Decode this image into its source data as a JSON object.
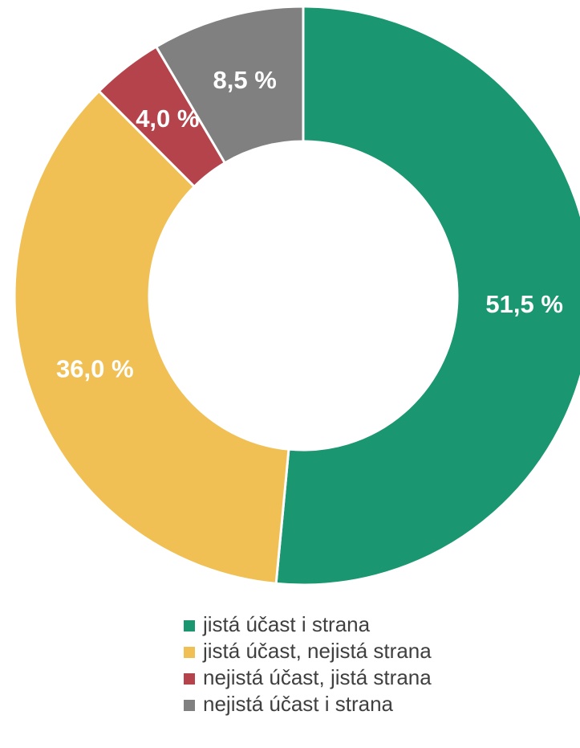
{
  "chart_data": {
    "type": "pie",
    "categories": [
      "jistá účast i strana",
      "jistá účast, nejistá strana",
      "nejistá účast, jistá strana",
      "nejistá účast i strana"
    ],
    "values": [
      51.5,
      36.0,
      4.0,
      8.5
    ],
    "value_labels": [
      "51,5 %",
      "36,0 %",
      "4,0 %",
      "8,5 %"
    ],
    "colors": [
      "#1a9670",
      "#f0c055",
      "#b5434b",
      "#808080"
    ],
    "legend": "bottom"
  }
}
